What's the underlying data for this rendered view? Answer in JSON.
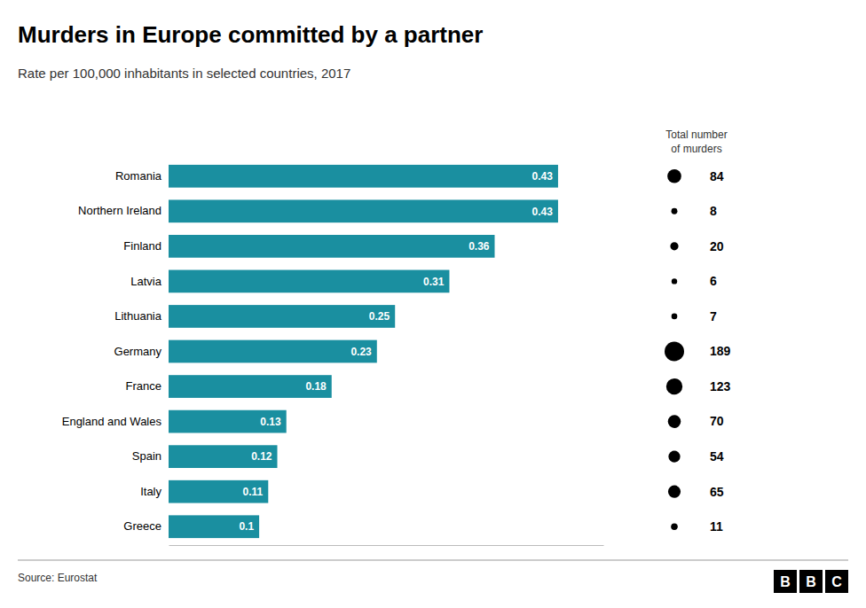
{
  "chart_data": {
    "type": "bar",
    "orientation": "horizontal",
    "title": "Murders in Europe committed by a partner",
    "subtitle": "Rate per 100,000 inhabitants in selected countries, 2017",
    "source": "Source: Eurostat",
    "categories": [
      "Romania",
      "Northern Ireland",
      "Finland",
      "Latvia",
      "Lithuania",
      "Germany",
      "France",
      "England and Wales",
      "Spain",
      "Italy",
      "Greece"
    ],
    "values": [
      0.43,
      0.43,
      0.36,
      0.31,
      0.25,
      0.23,
      0.18,
      0.13,
      0.12,
      0.11,
      0.1
    ],
    "totals": [
      84,
      8,
      20,
      6,
      7,
      189,
      123,
      70,
      54,
      65,
      11
    ],
    "totals_title": "Total number\nof murders",
    "color": "#1a8fa0",
    "xlim": [
      0,
      0.48
    ],
    "data_labels": true,
    "tick_labels": "y",
    "grid": false,
    "annotations": [
      "B",
      "B",
      "C"
    ]
  }
}
